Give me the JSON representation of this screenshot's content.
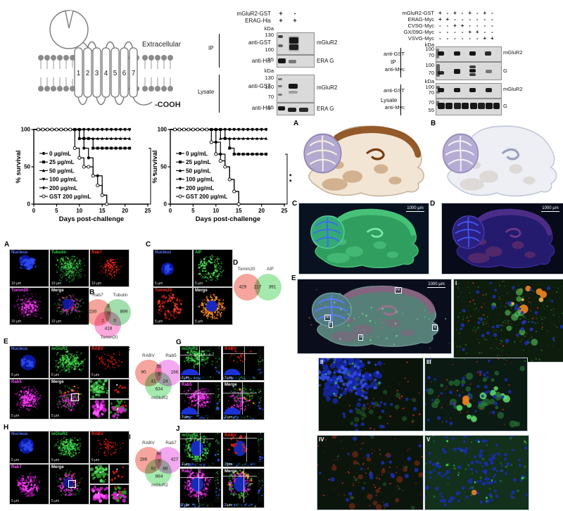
{
  "receptor": {
    "extracellular": "Extracellular",
    "cooh": "-COOH",
    "segments": [
      "1",
      "2",
      "3",
      "4",
      "5",
      "6",
      "7"
    ]
  },
  "blot1": {
    "kda": "kDa",
    "conditions": [
      {
        "label": "mGluR2-GST",
        "lanes": [
          "+",
          "-"
        ]
      },
      {
        "label": "ERAG-His",
        "lanes": [
          "+",
          "+"
        ]
      }
    ],
    "groups": [
      {
        "name": "IP",
        "rows": [
          {
            "ab": "anti-GST",
            "markers": [
              "130",
              "100"
            ],
            "target": "mGluR2"
          },
          {
            "ab": "anti-His",
            "markers": [
              "55"
            ],
            "target": "ERA G"
          }
        ]
      },
      {
        "name": "Lysate",
        "rows": [
          {
            "ab": "anti-GST",
            "markers": [
              "130",
              "100",
              "70"
            ],
            "target": "mGluR2"
          },
          {
            "ab": "anti-His",
            "markers": [
              "55"
            ],
            "target": "ERA G"
          }
        ]
      }
    ]
  },
  "blot2": {
    "kda": "kDa",
    "conditions": [
      {
        "label": "mGluR2-GST",
        "lanes": [
          "+",
          "-",
          "+",
          "-",
          "+",
          "-",
          "+",
          "-"
        ]
      },
      {
        "label": "ERAG-Myc",
        "lanes": [
          "+",
          "+",
          "-",
          "-",
          "-",
          "-",
          "-",
          "-"
        ]
      },
      {
        "label": "CVSG-Myc",
        "lanes": [
          "-",
          "-",
          "+",
          "+",
          "-",
          "-",
          "-",
          "-"
        ]
      },
      {
        "label": "GX/09G-Myc",
        "lanes": [
          "-",
          "-",
          "-",
          "-",
          "+",
          "+",
          "-",
          "-"
        ]
      },
      {
        "label": "VSVG-Myc",
        "lanes": [
          "-",
          "-",
          "-",
          "-",
          "-",
          "-",
          "+",
          "+"
        ]
      }
    ],
    "groups": [
      {
        "name": "IP",
        "rows": [
          {
            "ab": "anti-GST",
            "markers": [
              "100",
              "70"
            ],
            "target": "mGluR2"
          },
          {
            "ab": "anti-Myc",
            "markers": [
              "100",
              "70"
            ],
            "target": "G"
          }
        ]
      },
      {
        "name": "Lysate",
        "rows": [
          {
            "ab": "anti-GST",
            "markers": [
              "100",
              "70"
            ],
            "target": "mGluR2"
          },
          {
            "ab": "anti-Myc",
            "markers": [
              "70",
              "55"
            ],
            "target": "G"
          }
        ]
      }
    ]
  },
  "chart_data": [
    {
      "type": "line",
      "variant": "kaplan-meier",
      "xlabel": "Days post-challenge",
      "ylabel": "% survival",
      "xlim": [
        0,
        25
      ],
      "ylim": [
        0,
        100
      ],
      "xticks": [
        0,
        5,
        10,
        15,
        20,
        25
      ],
      "yticks": [
        0,
        50,
        100
      ],
      "grid": false,
      "legend_position": "inside-left",
      "significance": "*",
      "series": [
        {
          "name": "0 µg/mL",
          "marker": "circle",
          "points": [
            [
              0,
              100
            ],
            [
              9,
              100
            ],
            [
              10,
              88
            ],
            [
              11,
              75
            ],
            [
              12,
              62
            ],
            [
              13,
              38
            ],
            [
              15,
              12
            ],
            [
              16,
              0
            ]
          ]
        },
        {
          "name": "25 µg/mL",
          "marker": "square",
          "points": [
            [
              0,
              100
            ],
            [
              10,
              100
            ],
            [
              11,
              88
            ],
            [
              13,
              75
            ],
            [
              21,
              75
            ]
          ]
        },
        {
          "name": "50 µg/mL",
          "marker": "triangle",
          "points": [
            [
              0,
              100
            ],
            [
              10,
              88
            ],
            [
              21,
              88
            ]
          ]
        },
        {
          "name": "100 µg/mL",
          "marker": "triangle-down",
          "points": [
            [
              0,
              100
            ],
            [
              21,
              100
            ]
          ]
        },
        {
          "name": "200 µg/mL",
          "marker": "diamond",
          "points": [
            [
              0,
              100
            ],
            [
              21,
              100
            ]
          ]
        },
        {
          "name": "GST 200 µg/mL",
          "marker": "circle-open",
          "points": [
            [
              0,
              100
            ],
            [
              9,
              75
            ],
            [
              10,
              62
            ],
            [
              11,
              50
            ],
            [
              13,
              38
            ],
            [
              14,
              25
            ],
            [
              15,
              12
            ],
            [
              16,
              0
            ]
          ]
        }
      ]
    },
    {
      "type": "line",
      "variant": "kaplan-meier",
      "xlabel": "Days post-challenge",
      "ylabel": "% survival",
      "xlim": [
        0,
        25
      ],
      "ylim": [
        0,
        100
      ],
      "xticks": [
        0,
        5,
        10,
        15,
        20,
        25
      ],
      "yticks": [
        0,
        50,
        100
      ],
      "grid": false,
      "legend_position": "inside-left",
      "significance": "**",
      "series": [
        {
          "name": "0 µg/mL",
          "marker": "circle",
          "points": [
            [
              0,
              100
            ],
            [
              9,
              100
            ],
            [
              10,
              83
            ],
            [
              11,
              67
            ],
            [
              12,
              50
            ],
            [
              13,
              33
            ],
            [
              14,
              17
            ],
            [
              15,
              0
            ]
          ]
        },
        {
          "name": "25 µg/mL",
          "marker": "square",
          "points": [
            [
              0,
              100
            ],
            [
              11,
              100
            ],
            [
              12,
              88
            ],
            [
              13,
              75
            ],
            [
              14,
              67
            ],
            [
              21,
              67
            ]
          ]
        },
        {
          "name": "50 µg/mL",
          "marker": "triangle",
          "points": [
            [
              0,
              100
            ],
            [
              10,
              100
            ],
            [
              11,
              88
            ],
            [
              21,
              88
            ]
          ]
        },
        {
          "name": "100 µg/mL",
          "marker": "triangle-down",
          "points": [
            [
              0,
              100
            ],
            [
              21,
              100
            ]
          ]
        },
        {
          "name": "200 µg/mL",
          "marker": "diamond",
          "points": [
            [
              0,
              100
            ],
            [
              21,
              100
            ]
          ]
        },
        {
          "name": "GST 200 µg/mL",
          "marker": "circle-open",
          "points": [
            [
              0,
              100
            ],
            [
              9,
              83
            ],
            [
              10,
              67
            ],
            [
              11,
              58
            ],
            [
              12,
              50
            ],
            [
              13,
              33
            ],
            [
              14,
              17
            ],
            [
              15,
              0
            ]
          ]
        }
      ]
    }
  ],
  "venns": {
    "B": {
      "letter": "B",
      "setA": "Rab7",
      "setB": "Tubulin",
      "setC": "Tomm20",
      "a": "230",
      "b": "899",
      "c": "418",
      "ab": "3",
      "ac": "2",
      "bc": "0",
      "abc": "0"
    },
    "D": {
      "letter": "D",
      "setA": "Tomm20",
      "setB": "AIF",
      "a": "429",
      "ab": "217",
      "b": "391"
    },
    "F": {
      "letter": "F",
      "setA": "RABV",
      "setB": "Rab5",
      "setC": "mGluR2",
      "a": "90",
      "b": "166",
      "c": "634",
      "ab": "55",
      "ac": "41",
      "bc": "24",
      "abc": "9"
    },
    "I": {
      "letter": "I",
      "setA": "RABV",
      "setB": "Rab7",
      "setC": "mGluR2",
      "a": "286",
      "b": "427",
      "c": "884",
      "ab": "86",
      "ac": "92",
      "bc": "86",
      "abc": "7"
    }
  },
  "micro_panels": {
    "A": {
      "letter": "A",
      "labels": [
        "Nucleus",
        "Tubulin",
        "Rab7",
        "Tomm20",
        "Merge"
      ],
      "scale": "10 µm"
    },
    "C": {
      "letter": "C",
      "labels": [
        "Nucleus",
        "AIF",
        "Tomm20",
        "Merge"
      ],
      "scale": "5 µm"
    },
    "E": {
      "letter": "E",
      "labels": [
        "Nucleus",
        "mGluR2",
        "RABV",
        "Rab5",
        "Merge"
      ],
      "scale": "5 µm"
    },
    "G": {
      "letter": "G",
      "labels": [
        "mGluR2",
        "RABV",
        "Rab5",
        "Merge"
      ],
      "scale": "3 µm"
    },
    "H": {
      "letter": "H",
      "labels": [
        "Nucleus",
        "mGluR2",
        "RABV",
        "Rab7",
        "Merge"
      ],
      "scale": "5 µm"
    },
    "J": {
      "letter": "J",
      "labels": [
        "mGluR2",
        "RABV",
        "Rab7",
        "Merge"
      ],
      "scale": "2 µm"
    }
  },
  "brain_panels": {
    "A": {
      "letter": "A"
    },
    "B": {
      "letter": "B"
    },
    "C": {
      "letter": "C",
      "scale": "1000 µm"
    },
    "D": {
      "letter": "D",
      "scale": "1000 µm"
    },
    "E": {
      "letter": "E",
      "scale": "1000 µm",
      "insets": [
        "I",
        "II",
        "III",
        "IV",
        "V"
      ]
    },
    "I": {
      "letter": "I"
    },
    "II": {
      "letter": "II"
    },
    "III": {
      "letter": "III"
    },
    "IV": {
      "letter": "IV"
    },
    "V": {
      "letter": "V"
    }
  }
}
